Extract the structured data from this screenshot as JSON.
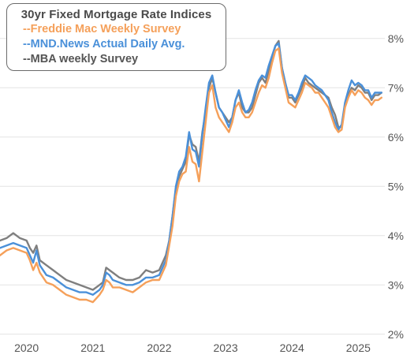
{
  "chart_data": {
    "type": "line",
    "title": "30yr Fixed Mortgage Rate Indices",
    "x_ticks": [
      "2020",
      "2021",
      "2022",
      "2023",
      "2024",
      "2025"
    ],
    "y_ticks": [
      "2%",
      "3%",
      "4%",
      "5%",
      "6%",
      "7%",
      "8%"
    ],
    "xlim": [
      2019.6,
      2025.4
    ],
    "ylim": [
      1.9,
      8.3
    ],
    "grid": "horizontal",
    "legend_position": "top-left",
    "series": [
      {
        "name": "--MBA weekly Survey",
        "color": "#7f7f7f",
        "x": [
          2019.6,
          2019.7,
          2019.8,
          2019.9,
          2020.0,
          2020.05,
          2020.1,
          2020.15,
          2020.2,
          2020.3,
          2020.4,
          2020.5,
          2020.6,
          2020.7,
          2020.8,
          2020.9,
          2021.0,
          2021.1,
          2021.15,
          2021.2,
          2021.25,
          2021.3,
          2021.4,
          2021.5,
          2021.6,
          2021.7,
          2021.8,
          2021.9,
          2022.0,
          2022.1,
          2022.15,
          2022.2,
          2022.25,
          2022.3,
          2022.35,
          2022.4,
          2022.45,
          2022.5,
          2022.55,
          2022.6,
          2022.65,
          2022.7,
          2022.75,
          2022.8,
          2022.85,
          2022.9,
          2022.95,
          2023.0,
          2023.05,
          2023.1,
          2023.15,
          2023.2,
          2023.25,
          2023.3,
          2023.35,
          2023.4,
          2023.45,
          2023.5,
          2023.55,
          2023.6,
          2023.65,
          2023.7,
          2023.75,
          2023.8,
          2023.85,
          2023.9,
          2023.95,
          2024.0,
          2024.05,
          2024.1,
          2024.15,
          2024.2,
          2024.25,
          2024.3,
          2024.35,
          2024.4,
          2024.45,
          2024.5,
          2024.55,
          2024.6,
          2024.65,
          2024.7,
          2024.75,
          2024.8,
          2024.85,
          2024.9,
          2024.95,
          2025.0,
          2025.05,
          2025.1,
          2025.15,
          2025.2,
          2025.25,
          2025.3,
          2025.35
        ],
        "y": [
          3.9,
          3.95,
          4.05,
          3.95,
          3.9,
          3.75,
          3.65,
          3.8,
          3.5,
          3.4,
          3.3,
          3.2,
          3.1,
          3.05,
          3.0,
          2.95,
          2.9,
          3.0,
          3.05,
          3.35,
          3.3,
          3.25,
          3.15,
          3.1,
          3.1,
          3.15,
          3.3,
          3.25,
          3.3,
          3.6,
          3.9,
          4.4,
          4.95,
          5.2,
          5.35,
          5.5,
          6.05,
          5.85,
          5.8,
          5.5,
          6.1,
          6.5,
          7.0,
          7.2,
          6.9,
          6.6,
          6.5,
          6.4,
          6.3,
          6.4,
          6.75,
          6.9,
          6.6,
          6.5,
          6.5,
          6.6,
          6.85,
          7.1,
          7.2,
          7.1,
          7.35,
          7.6,
          7.85,
          7.95,
          7.4,
          7.1,
          6.8,
          6.8,
          6.7,
          6.85,
          7.0,
          7.2,
          7.1,
          7.05,
          7.0,
          6.95,
          6.9,
          6.85,
          6.8,
          6.6,
          6.45,
          6.2,
          6.2,
          6.65,
          6.85,
          7.0,
          6.95,
          7.05,
          7.0,
          6.9,
          6.9,
          6.75,
          6.85,
          6.85,
          6.9
        ]
      },
      {
        "name": "--MND.News Actual Daily Avg.",
        "color": "#4a90d9",
        "x": [
          2019.6,
          2019.7,
          2019.8,
          2019.9,
          2020.0,
          2020.05,
          2020.1,
          2020.15,
          2020.2,
          2020.3,
          2020.4,
          2020.5,
          2020.6,
          2020.7,
          2020.8,
          2020.9,
          2021.0,
          2021.1,
          2021.15,
          2021.2,
          2021.25,
          2021.3,
          2021.4,
          2021.5,
          2021.6,
          2021.7,
          2021.8,
          2021.9,
          2022.0,
          2022.1,
          2022.15,
          2022.2,
          2022.25,
          2022.3,
          2022.35,
          2022.4,
          2022.45,
          2022.5,
          2022.55,
          2022.6,
          2022.65,
          2022.7,
          2022.75,
          2022.8,
          2022.85,
          2022.9,
          2022.95,
          2023.0,
          2023.05,
          2023.1,
          2023.15,
          2023.2,
          2023.25,
          2023.3,
          2023.35,
          2023.4,
          2023.45,
          2023.5,
          2023.55,
          2023.6,
          2023.65,
          2023.7,
          2023.75,
          2023.8,
          2023.85,
          2023.9,
          2023.95,
          2024.0,
          2024.05,
          2024.1,
          2024.15,
          2024.2,
          2024.25,
          2024.3,
          2024.35,
          2024.4,
          2024.45,
          2024.5,
          2024.55,
          2024.6,
          2024.65,
          2024.7,
          2024.75,
          2024.8,
          2024.85,
          2024.9,
          2024.95,
          2025.0,
          2025.05,
          2025.1,
          2025.15,
          2025.2,
          2025.25,
          2025.3,
          2025.35
        ],
        "y": [
          3.75,
          3.8,
          3.85,
          3.8,
          3.75,
          3.6,
          3.45,
          3.7,
          3.4,
          3.2,
          3.15,
          3.05,
          2.95,
          2.9,
          2.85,
          2.85,
          2.8,
          2.9,
          3.0,
          3.25,
          3.2,
          3.1,
          3.05,
          3.0,
          3.0,
          3.05,
          3.15,
          3.15,
          3.2,
          3.5,
          3.9,
          4.4,
          5.0,
          5.3,
          5.4,
          5.6,
          6.1,
          5.75,
          5.7,
          5.4,
          6.05,
          6.6,
          7.1,
          7.25,
          6.9,
          6.6,
          6.5,
          6.35,
          6.2,
          6.4,
          6.75,
          6.95,
          6.7,
          6.5,
          6.55,
          6.7,
          6.95,
          7.15,
          7.25,
          7.2,
          7.45,
          7.65,
          7.85,
          7.9,
          7.4,
          7.1,
          6.85,
          6.85,
          6.75,
          6.9,
          7.1,
          7.25,
          7.2,
          7.15,
          7.05,
          7.0,
          6.95,
          6.85,
          6.75,
          6.5,
          6.3,
          6.15,
          6.25,
          6.7,
          6.95,
          7.15,
          7.05,
          7.1,
          7.05,
          6.95,
          6.95,
          6.8,
          6.9,
          6.9,
          6.9
        ]
      },
      {
        "name": "--Freddie Mac Weekly Survey",
        "color": "#f5a05a",
        "x": [
          2019.6,
          2019.7,
          2019.8,
          2019.9,
          2020.0,
          2020.05,
          2020.1,
          2020.15,
          2020.2,
          2020.3,
          2020.4,
          2020.5,
          2020.6,
          2020.7,
          2020.8,
          2020.9,
          2021.0,
          2021.1,
          2021.15,
          2021.2,
          2021.25,
          2021.3,
          2021.4,
          2021.5,
          2021.6,
          2021.7,
          2021.8,
          2021.9,
          2022.0,
          2022.1,
          2022.15,
          2022.2,
          2022.25,
          2022.3,
          2022.35,
          2022.4,
          2022.45,
          2022.5,
          2022.55,
          2022.6,
          2022.65,
          2022.7,
          2022.75,
          2022.8,
          2022.85,
          2022.9,
          2022.95,
          2023.0,
          2023.05,
          2023.1,
          2023.15,
          2023.2,
          2023.25,
          2023.3,
          2023.35,
          2023.4,
          2023.45,
          2023.5,
          2023.55,
          2023.6,
          2023.65,
          2023.7,
          2023.75,
          2023.8,
          2023.85,
          2023.9,
          2023.95,
          2024.0,
          2024.05,
          2024.1,
          2024.15,
          2024.2,
          2024.25,
          2024.3,
          2024.35,
          2024.4,
          2024.45,
          2024.5,
          2024.55,
          2024.6,
          2024.65,
          2024.7,
          2024.75,
          2024.8,
          2024.85,
          2024.9,
          2024.95,
          2025.0,
          2025.05,
          2025.1,
          2025.15,
          2025.2,
          2025.25,
          2025.3,
          2025.35
        ],
        "y": [
          3.6,
          3.7,
          3.75,
          3.7,
          3.65,
          3.5,
          3.3,
          3.45,
          3.25,
          3.05,
          3.0,
          2.9,
          2.8,
          2.75,
          2.7,
          2.7,
          2.65,
          2.8,
          2.9,
          3.1,
          3.05,
          2.95,
          2.95,
          2.9,
          2.85,
          2.95,
          3.05,
          3.1,
          3.1,
          3.4,
          3.8,
          4.2,
          4.8,
          5.1,
          5.25,
          5.3,
          5.8,
          5.5,
          5.45,
          5.1,
          5.7,
          6.3,
          6.9,
          7.05,
          6.6,
          6.4,
          6.3,
          6.2,
          6.1,
          6.3,
          6.6,
          6.7,
          6.5,
          6.4,
          6.4,
          6.5,
          6.7,
          6.9,
          7.05,
          7.0,
          7.2,
          7.5,
          7.75,
          7.8,
          7.3,
          7.0,
          6.7,
          6.65,
          6.6,
          6.75,
          6.9,
          7.1,
          7.05,
          7.0,
          6.9,
          6.9,
          6.8,
          6.7,
          6.6,
          6.4,
          6.2,
          6.1,
          6.15,
          6.6,
          6.8,
          6.95,
          6.85,
          6.95,
          6.9,
          6.8,
          6.75,
          6.65,
          6.75,
          6.75,
          6.8
        ]
      }
    ]
  },
  "legend": {
    "title": "30yr Fixed Mortgage Rate Indices",
    "entries": [
      {
        "label": "--Freddie Mac Weekly Survey",
        "color": "#f5a05a"
      },
      {
        "label": "--MND.News Actual Daily Avg.",
        "color": "#4a90d9"
      },
      {
        "label": "--MBA weekly Survey",
        "color": "#555555"
      }
    ]
  }
}
